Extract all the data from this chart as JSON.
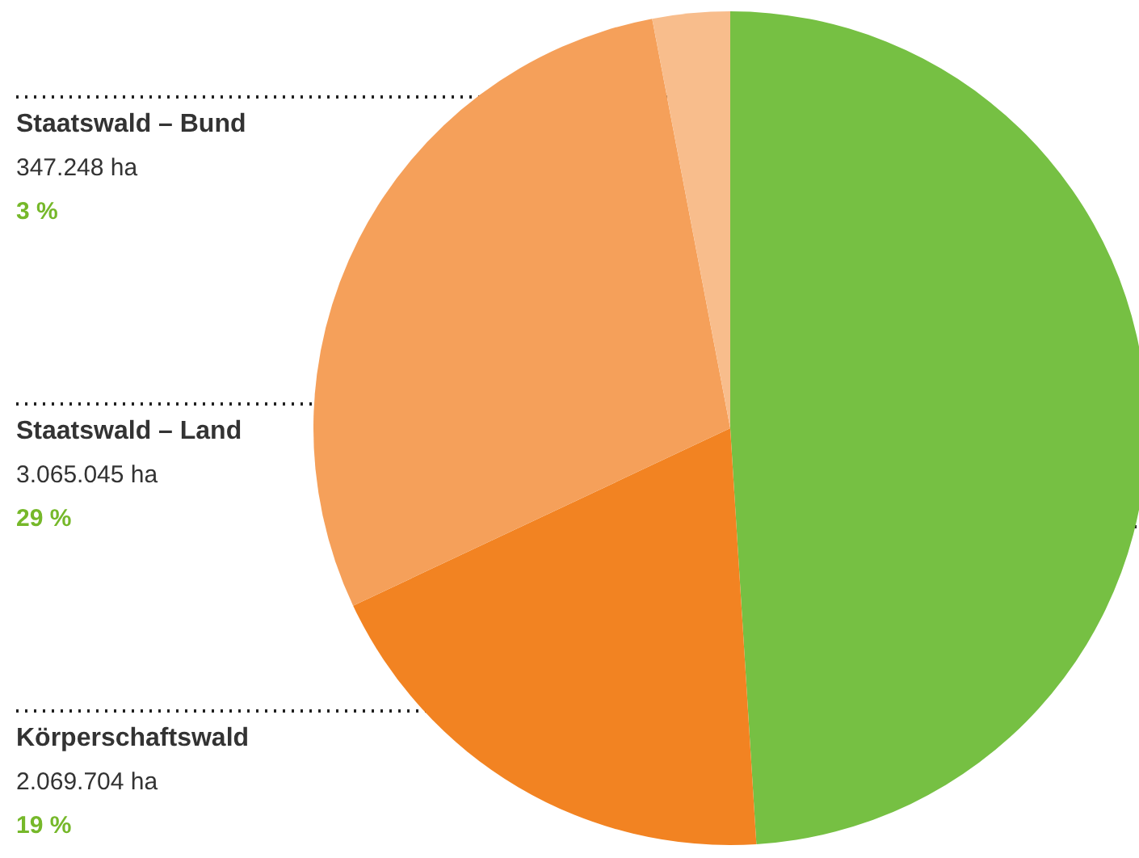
{
  "chart_data": {
    "type": "pie",
    "categories": [
      null,
      "Körperschaftswald",
      "Staatswald – Land",
      "Staatswald – Bund"
    ],
    "values": [
      49,
      19,
      29,
      3
    ],
    "colors": [
      "#76c043",
      "#f28322",
      "#f5a05a",
      "#f8bd8c"
    ],
    "value_labels": [
      null,
      "2.069.704 ha\n19 %",
      "3.065.045 ha\n29 %",
      "347.248 ha\n3 %"
    ]
  }
}
